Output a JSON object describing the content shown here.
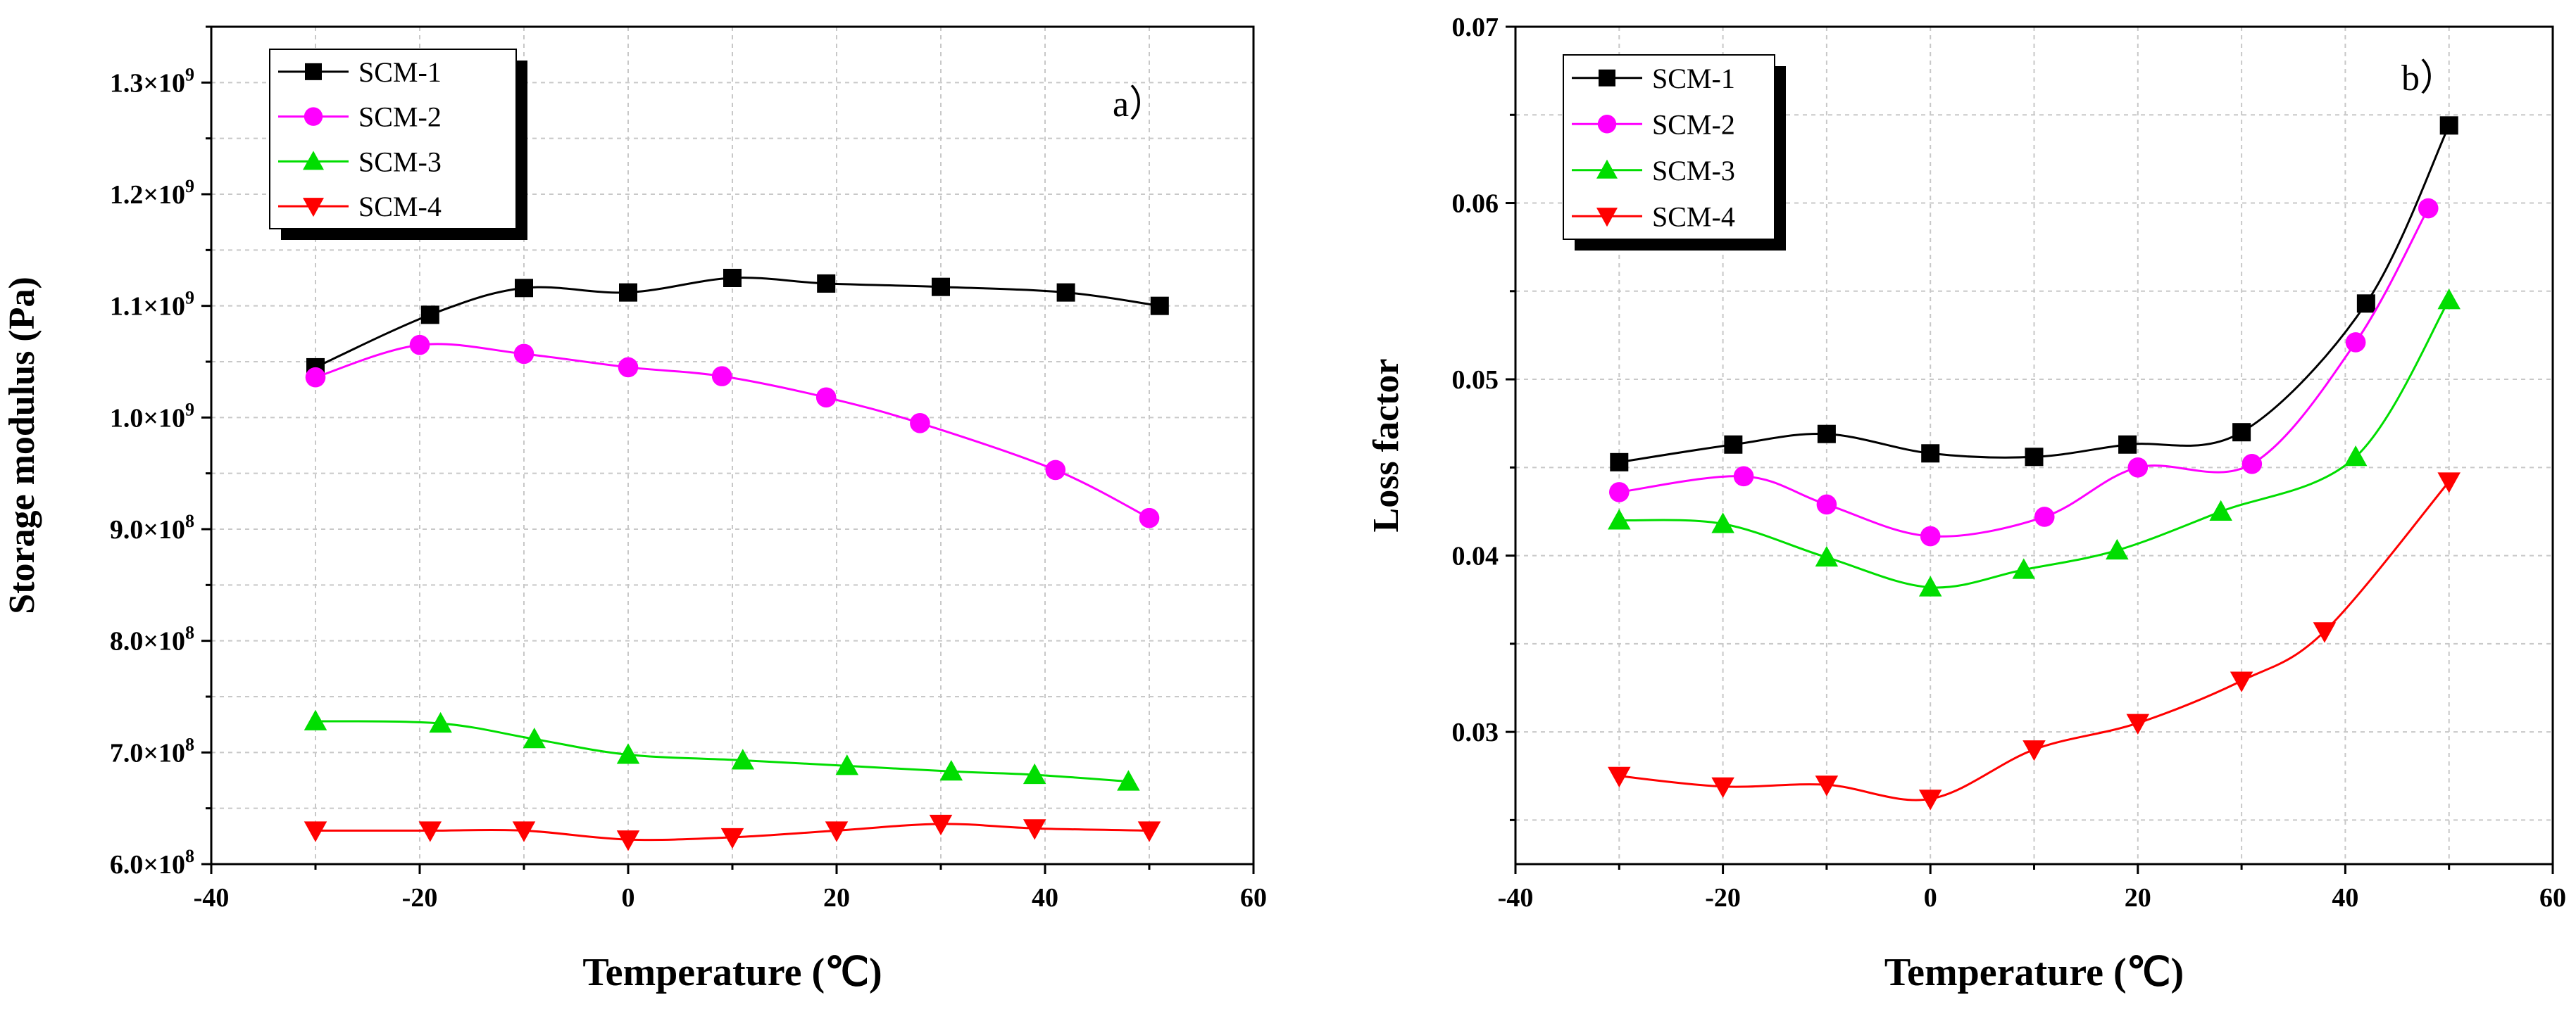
{
  "chart_data": [
    {
      "type": "line",
      "panel_label": "a）",
      "xlabel": "Temperature (℃)",
      "ylabel": "Storage modulus (Pa)",
      "xlim": [
        -40,
        60
      ],
      "ylim": [
        600000000,
        1350000000
      ],
      "x_ticks": [
        -40,
        -20,
        0,
        20,
        40,
        60
      ],
      "x_tick_labels": [
        "-40",
        "-20",
        "0",
        "20",
        "40",
        "60"
      ],
      "y_ticks": [
        600000000,
        700000000,
        800000000,
        900000000,
        1000000000,
        1100000000,
        1200000000,
        1300000000
      ],
      "y_tick_mantissas": [
        "6.0×10",
        "7.0×10",
        "8.0×10",
        "9.0×10",
        "1.0×10",
        "1.1×10",
        "1.2×10",
        "1.3×10"
      ],
      "y_tick_exponents": [
        "8",
        "8",
        "8",
        "8",
        "9",
        "9",
        "9",
        "9"
      ],
      "grid": true,
      "legend_position": "top-left",
      "series": [
        {
          "name": "SCM-1",
          "color": "#000000",
          "marker": "square",
          "x": [
            -30,
            -19,
            -10,
            0,
            10,
            19,
            30,
            42,
            51
          ],
          "y": [
            1045000000,
            1092000000,
            1116000000,
            1112000000,
            1125000000,
            1120000000,
            1117000000,
            1112000000,
            1100000000
          ]
        },
        {
          "name": "SCM-2",
          "color": "#ff00ff",
          "marker": "circle",
          "x": [
            -30,
            -20,
            -10,
            0,
            9,
            19,
            28,
            41,
            50
          ],
          "y": [
            1036000000,
            1065000000,
            1057000000,
            1045000000,
            1037000000,
            1018000000,
            995000000,
            953000000,
            910000000
          ]
        },
        {
          "name": "SCM-3",
          "color": "#00dd00",
          "marker": "triangle-up",
          "x": [
            -30,
            -18,
            -9,
            0,
            11,
            21,
            31,
            39,
            48
          ],
          "y": [
            728000000,
            726000000,
            712000000,
            698000000,
            693000000,
            688000000,
            683000000,
            680000000,
            674000000
          ]
        },
        {
          "name": "SCM-4",
          "color": "#ff0000",
          "marker": "triangle-down",
          "x": [
            -30,
            -19,
            -10,
            0,
            10,
            20,
            30,
            39,
            50
          ],
          "y": [
            630000000,
            630000000,
            630000000,
            622000000,
            624000000,
            630000000,
            636000000,
            632000000,
            630000000
          ]
        }
      ]
    },
    {
      "type": "line",
      "panel_label": "b）",
      "xlabel": "Temperature (℃)",
      "ylabel": "Loss factor",
      "xlim": [
        -40,
        60
      ],
      "ylim": [
        0.0225,
        0.07
      ],
      "x_ticks": [
        -40,
        -20,
        0,
        20,
        40,
        60
      ],
      "x_tick_labels": [
        "-40",
        "-20",
        "0",
        "20",
        "40",
        "60"
      ],
      "y_ticks": [
        0.03,
        0.04,
        0.05,
        0.06,
        0.07
      ],
      "y_tick_labels": [
        "0.03",
        "0.04",
        "0.05",
        "0.06",
        "0.07"
      ],
      "grid": true,
      "legend_position": "top-left",
      "series": [
        {
          "name": "SCM-1",
          "color": "#000000",
          "marker": "square",
          "x": [
            -30,
            -19,
            -10,
            0,
            10,
            19,
            30,
            42,
            50
          ],
          "y": [
            0.0453,
            0.0463,
            0.0469,
            0.0458,
            0.0456,
            0.0463,
            0.047,
            0.0543,
            0.0644
          ]
        },
        {
          "name": "SCM-2",
          "color": "#ff00ff",
          "marker": "circle",
          "x": [
            -30,
            -18,
            -10,
            0,
            11,
            20,
            31,
            41,
            48
          ],
          "y": [
            0.0436,
            0.0445,
            0.0429,
            0.0411,
            0.0422,
            0.045,
            0.0452,
            0.0521,
            0.0597
          ]
        },
        {
          "name": "SCM-3",
          "color": "#00dd00",
          "marker": "triangle-up",
          "x": [
            -30,
            -20,
            -10,
            0,
            9,
            18,
            28,
            41,
            50
          ],
          "y": [
            0.042,
            0.0418,
            0.0399,
            0.0382,
            0.0392,
            0.0403,
            0.0425,
            0.0456,
            0.0545
          ]
        },
        {
          "name": "SCM-4",
          "color": "#ff0000",
          "marker": "triangle-down",
          "x": [
            -30,
            -20,
            -10,
            0,
            10,
            20,
            30,
            38,
            50
          ],
          "y": [
            0.0275,
            0.0269,
            0.027,
            0.0262,
            0.029,
            0.0305,
            0.0329,
            0.0357,
            0.0442
          ]
        }
      ]
    }
  ]
}
